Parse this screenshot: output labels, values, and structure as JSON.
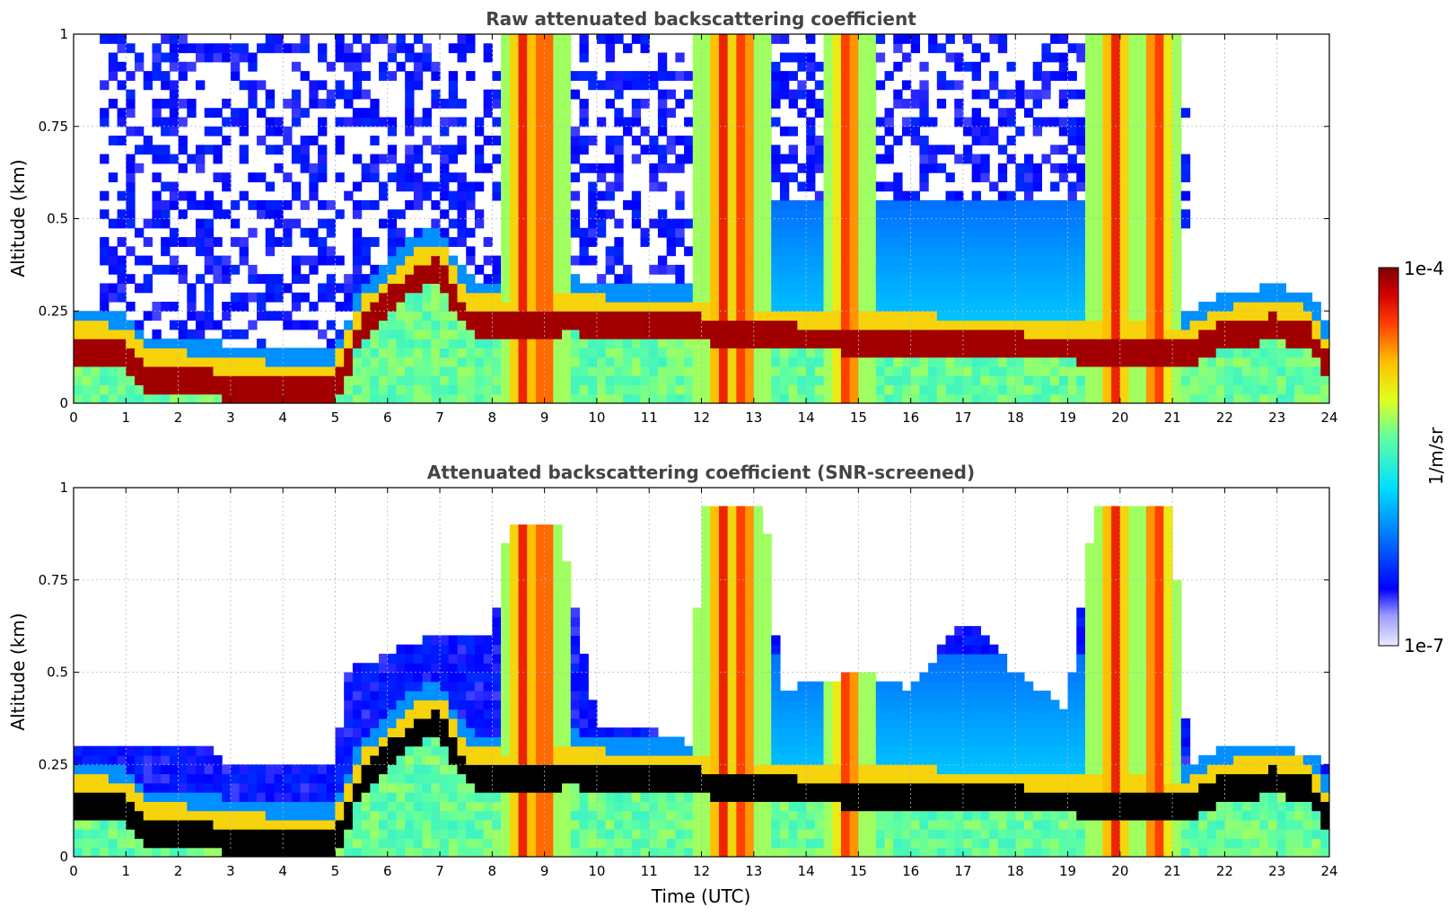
{
  "chart_data": [
    {
      "type": "heatmap",
      "title": "Raw attenuated backscattering coefficient",
      "xlabel": "",
      "ylabel": "Altitude (km)",
      "xlim": [
        0,
        24
      ],
      "ylim": [
        0,
        1
      ],
      "x_ticks": [
        "0",
        "1",
        "2",
        "3",
        "4",
        "5",
        "6",
        "7",
        "8",
        "9",
        "10",
        "11",
        "12",
        "13",
        "14",
        "15",
        "16",
        "17",
        "18",
        "19",
        "20",
        "21",
        "22",
        "23",
        "24"
      ],
      "y_ticks": [
        {
          "v": 0,
          "label": "0"
        },
        {
          "v": 0.25,
          "label": "0.25"
        },
        {
          "v": 0.5,
          "label": "0.5"
        },
        {
          "v": 0.75,
          "label": "0.75"
        },
        {
          "v": 1,
          "label": "1"
        }
      ],
      "grid": true,
      "screened": false,
      "boundary_layer_top_km": [
        [
          0,
          0.16
        ],
        [
          1,
          0.15
        ],
        [
          1.4,
          0.08
        ],
        [
          2,
          0.08
        ],
        [
          3,
          0.06
        ],
        [
          4,
          0.05
        ],
        [
          5,
          0.05
        ],
        [
          5.5,
          0.22
        ],
        [
          6.5,
          0.35
        ],
        [
          7,
          0.38
        ],
        [
          7.5,
          0.24
        ],
        [
          8.5,
          0.22
        ],
        [
          9.5,
          0.24
        ],
        [
          10.5,
          0.22
        ],
        [
          12,
          0.22
        ],
        [
          12.5,
          0.2
        ],
        [
          21.3,
          0.15
        ],
        [
          22,
          0.2
        ],
        [
          23,
          0.22
        ],
        [
          23.6,
          0.2
        ],
        [
          24,
          0.1
        ]
      ],
      "high_signal_columns_utc": [
        8.6,
        9.0,
        12.4,
        12.8,
        14.8,
        19.9,
        20.7
      ],
      "noise_region_utc": [
        0.5,
        21.3
      ]
    },
    {
      "type": "heatmap",
      "title": "Attenuated backscattering coefficient (SNR-screened)",
      "xlabel": "Time (UTC)",
      "ylabel": "Altitude (km)",
      "xlim": [
        0,
        24
      ],
      "ylim": [
        0,
        1
      ],
      "x_ticks": [
        "0",
        "1",
        "2",
        "3",
        "4",
        "5",
        "6",
        "7",
        "8",
        "9",
        "10",
        "11",
        "12",
        "13",
        "14",
        "15",
        "16",
        "17",
        "18",
        "19",
        "20",
        "21",
        "22",
        "23",
        "24"
      ],
      "y_ticks": [
        {
          "v": 0,
          "label": "0"
        },
        {
          "v": 0.25,
          "label": "0.25"
        },
        {
          "v": 0.5,
          "label": "0.5"
        },
        {
          "v": 0.75,
          "label": "0.75"
        },
        {
          "v": 1,
          "label": "1"
        }
      ],
      "grid": true,
      "screened": true,
      "boundary_layer_top_km": [
        [
          0,
          0.16
        ],
        [
          1,
          0.15
        ],
        [
          1.4,
          0.08
        ],
        [
          2,
          0.08
        ],
        [
          3,
          0.06
        ],
        [
          4,
          0.05
        ],
        [
          5,
          0.05
        ],
        [
          5.5,
          0.22
        ],
        [
          6.5,
          0.35
        ],
        [
          7,
          0.38
        ],
        [
          7.5,
          0.24
        ],
        [
          8.5,
          0.22
        ],
        [
          9.5,
          0.24
        ],
        [
          10.5,
          0.22
        ],
        [
          12,
          0.22
        ],
        [
          12.5,
          0.2
        ],
        [
          21.3,
          0.15
        ],
        [
          22,
          0.2
        ],
        [
          23,
          0.22
        ],
        [
          23.6,
          0.2
        ],
        [
          24,
          0.1
        ]
      ],
      "high_signal_columns_utc": [
        8.6,
        9.0,
        12.4,
        12.8,
        14.8,
        19.9,
        20.7
      ],
      "retained_top_km": [
        [
          0,
          0.3
        ],
        [
          2.5,
          0.3
        ],
        [
          3,
          0.25
        ],
        [
          5,
          0.25
        ],
        [
          5.2,
          0.5
        ],
        [
          6,
          0.55
        ],
        [
          7,
          0.6
        ],
        [
          8,
          0.6
        ],
        [
          8.3,
          0.9
        ],
        [
          9.3,
          0.9
        ],
        [
          10,
          0.35
        ],
        [
          11,
          0.35
        ],
        [
          11.8,
          0.3
        ],
        [
          12,
          0.95
        ],
        [
          13.2,
          0.95
        ],
        [
          13.5,
          0.45
        ],
        [
          15,
          0.5
        ],
        [
          16,
          0.45
        ],
        [
          17,
          0.65
        ],
        [
          18,
          0.5
        ],
        [
          19,
          0.4
        ],
        [
          19.5,
          0.95
        ],
        [
          21,
          0.95
        ],
        [
          21.3,
          0.25
        ],
        [
          22,
          0.3
        ],
        [
          23,
          0.3
        ],
        [
          24,
          0.25
        ]
      ]
    }
  ],
  "colorbar": {
    "max_label": "1e-4",
    "min_label": "1e-7",
    "unit_label": "1/m/sr",
    "scale": "log",
    "range": [
      1e-07,
      0.0001
    ],
    "colormap": "jet",
    "min_color": "#e8e8ff",
    "max_color": "#800000"
  }
}
